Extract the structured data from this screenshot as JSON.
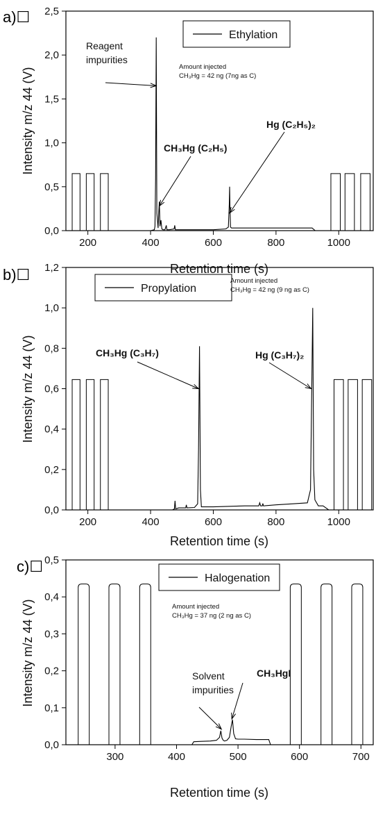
{
  "chart_data": [
    {
      "type": "line",
      "panel_label": "a)☐",
      "legend": "Ethylation",
      "xlabel": "Retention time (s)",
      "ylabel": "Intensity m/z 44 (V)",
      "xlim": [
        130,
        1110
      ],
      "ylim": [
        0,
        2.5
      ],
      "xticks": [
        200,
        400,
        600,
        800,
        1000
      ],
      "xtick_labels": [
        "200",
        "400",
        "600",
        "800",
        "1000"
      ],
      "yticks": [
        0,
        0.5,
        1.0,
        1.5,
        2.0,
        2.5
      ],
      "ytick_labels": [
        "0,0",
        "0,5",
        "1,0",
        "1,5",
        "2,0",
        "2,5"
      ],
      "pulses": [
        [
          150,
          175
        ],
        [
          195,
          220
        ],
        [
          240,
          265
        ],
        [
          975,
          1005
        ],
        [
          1020,
          1050
        ],
        [
          1070,
          1100
        ]
      ],
      "pulse_height": 0.65,
      "series": [
        {
          "x": [
            265,
            400,
            412,
            414,
            416,
            418,
            420,
            424,
            426,
            428,
            430,
            433,
            436,
            440,
            446,
            450,
            452,
            454,
            460,
            475,
            477,
            479,
            490,
            510,
            600,
            640,
            648,
            651,
            652,
            653,
            655,
            658,
            665,
            700,
            750,
            800,
            850,
            900,
            915,
            925,
            975
          ],
          "y": [
            0.0,
            0.0,
            0.01,
            0.05,
            0.6,
            2.2,
            0.2,
            0.03,
            0.2,
            0.33,
            0.05,
            0.12,
            0.02,
            0.01,
            0.01,
            0.06,
            0.01,
            0.01,
            0.01,
            0.02,
            0.06,
            0.01,
            0.01,
            0.01,
            0.01,
            0.02,
            0.04,
            0.3,
            0.5,
            0.3,
            0.04,
            0.03,
            0.03,
            0.03,
            0.03,
            0.03,
            0.03,
            0.03,
            0.03,
            0.0,
            0.0
          ]
        }
      ],
      "annotations": [
        {
          "lines": [
            "Reagent",
            "impurities"
          ],
          "style": "normal",
          "target": [
            418,
            1.65
          ]
        },
        {
          "lines": [
            "CH₃Hg (C₂H₅)"
          ],
          "style": "bold",
          "target": [
            428,
            0.28
          ]
        },
        {
          "lines": [
            "Hg (C₂H₅)₂"
          ],
          "style": "bold",
          "target": [
            652,
            0.2
          ]
        }
      ],
      "note": [
        "Amount injected",
        "CH₃Hg = 42 ng (7ng as C)"
      ]
    },
    {
      "type": "line",
      "panel_label": "b)☐",
      "legend": "Propylation",
      "xlabel": "Retention time (s)",
      "ylabel": "Intensity m/z 44 (V)",
      "xlim": [
        130,
        1110
      ],
      "ylim": [
        0,
        1.2
      ],
      "xticks": [
        200,
        400,
        600,
        800,
        1000
      ],
      "xtick_labels": [
        "200",
        "400",
        "600",
        "800",
        "1000"
      ],
      "yticks": [
        0,
        0.2,
        0.4,
        0.6,
        0.8,
        1.0,
        1.2
      ],
      "ytick_labels": [
        "0,0",
        "0,2",
        "0,4",
        "0,6",
        "0,8",
        "1,0",
        "1,2"
      ],
      "pulses": [
        [
          150,
          175
        ],
        [
          195,
          220
        ],
        [
          240,
          265
        ],
        [
          985,
          1015
        ],
        [
          1030,
          1060
        ],
        [
          1075,
          1105
        ]
      ],
      "pulse_height": 0.645,
      "series": [
        {
          "x": [
            265,
            470,
            476,
            478,
            480,
            490,
            512,
            514,
            516,
            540,
            550,
            553,
            556,
            559,
            562,
            600,
            700,
            745,
            748,
            751,
            756,
            758,
            760,
            800,
            850,
            900,
            910,
            914,
            917,
            920,
            924,
            935,
            950,
            968,
            985
          ],
          "y": [
            0.0,
            0.0,
            0.005,
            0.045,
            0.005,
            0.01,
            0.01,
            0.025,
            0.01,
            0.012,
            0.03,
            0.3,
            0.81,
            0.1,
            0.015,
            0.015,
            0.02,
            0.02,
            0.035,
            0.02,
            0.02,
            0.032,
            0.02,
            0.025,
            0.03,
            0.035,
            0.1,
            0.6,
            1.0,
            0.2,
            0.05,
            0.02,
            0.02,
            0.0,
            0.0
          ]
        }
      ],
      "annotations": [
        {
          "lines": [
            "CH₃Hg (C₃H₇)"
          ],
          "style": "bold",
          "target": [
            553,
            0.6
          ]
        },
        {
          "lines": [
            "Hg (C₃H₇)₂"
          ],
          "style": "bold",
          "target": [
            912,
            0.6
          ]
        }
      ],
      "note": [
        "Amount injected",
        "CH₃Hg = 42 ng (9 ng as C)"
      ]
    },
    {
      "type": "line",
      "panel_label": "c)☐",
      "legend": "Halogenation",
      "xlabel": "Retention time (s)",
      "ylabel": "Intensity m/z 44 (V)",
      "xlim": [
        220,
        720
      ],
      "ylim": [
        0,
        0.5
      ],
      "xticks": [
        300,
        400,
        500,
        600,
        700
      ],
      "xtick_labels": [
        "300",
        "400",
        "500",
        "600",
        "700"
      ],
      "yticks": [
        0,
        0.1,
        0.2,
        0.3,
        0.4,
        0.5
      ],
      "ytick_labels": [
        "0,0",
        "0,1",
        "0,2",
        "0,3",
        "0,4",
        "0,5"
      ],
      "pulses": [
        [
          240,
          258
        ],
        [
          290,
          308
        ],
        [
          340,
          358
        ],
        [
          585,
          603
        ],
        [
          635,
          653
        ],
        [
          685,
          703
        ]
      ],
      "pulse_height": 0.435,
      "series": [
        {
          "x": [
            358,
            425,
            428,
            440,
            455,
            465,
            470,
            472,
            474,
            476,
            478,
            482,
            486,
            489,
            491,
            493,
            496,
            500,
            510,
            530,
            550,
            553,
            585
          ],
          "y": [
            0.0,
            0.0,
            0.008,
            0.009,
            0.01,
            0.012,
            0.02,
            0.038,
            0.018,
            0.012,
            0.01,
            0.012,
            0.02,
            0.05,
            0.068,
            0.03,
            0.016,
            0.015,
            0.015,
            0.014,
            0.014,
            0.0,
            0.0
          ]
        }
      ],
      "annotations": [
        {
          "lines": [
            "Solvent",
            "impurities"
          ],
          "style": "normal",
          "target": [
            473,
            0.042
          ]
        },
        {
          "lines": [
            "CH₃HgI"
          ],
          "style": "bold",
          "target": [
            490,
            0.07
          ]
        }
      ],
      "note": [
        "Amount injected",
        "CH₃Hg = 37 ng (2 ng as C)"
      ]
    }
  ]
}
